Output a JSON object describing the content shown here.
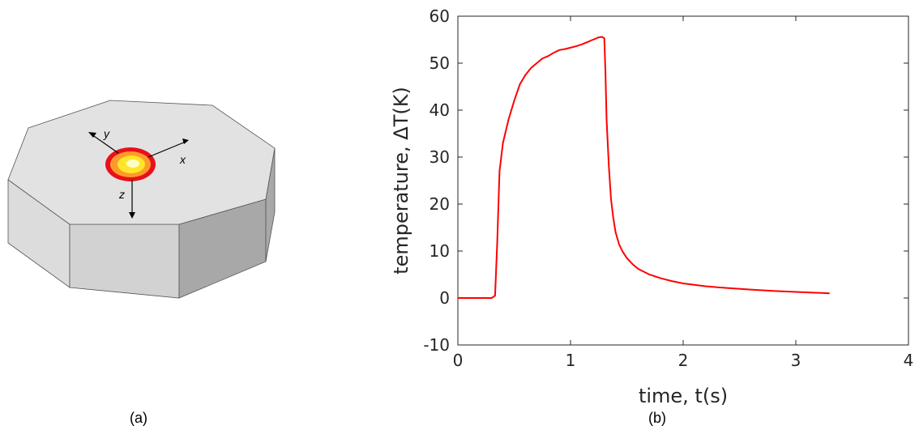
{
  "panels": {
    "a": {
      "label": "(a)"
    },
    "b": {
      "label": "(b)"
    }
  },
  "diagram": {
    "axis_labels": {
      "x": "x",
      "y": "y",
      "z": "z"
    },
    "colors": {
      "top_face": "#e2e2e2",
      "side_light": "#dcdcdc",
      "side_mid": "#d2d2d2",
      "side_dark": "#a8a8a8",
      "spot_outer": "#e8101a",
      "spot_mid": "#ff9a2a",
      "spot_inner": "#ffe62a",
      "spot_core": "#ffffc8"
    }
  },
  "chart_data": {
    "type": "line",
    "xlabel": "time, t(s)",
    "ylabel": "temperature, ΔT(K)",
    "xlim": [
      0,
      4
    ],
    "ylim": [
      -10,
      60
    ],
    "xticks": [
      "0",
      "1",
      "2",
      "3",
      "4"
    ],
    "yticks": [
      "-10",
      "0",
      "10",
      "20",
      "30",
      "40",
      "50",
      "60"
    ],
    "grid": false,
    "color": "#ff0000",
    "series": [
      {
        "x": [
          0,
          0.1,
          0.2,
          0.3,
          0.33,
          0.35,
          0.37,
          0.4,
          0.45,
          0.5,
          0.55,
          0.6,
          0.65,
          0.7,
          0.75,
          0.8,
          0.85,
          0.9,
          0.95,
          1.0,
          1.05,
          1.1,
          1.15,
          1.2,
          1.25,
          1.28,
          1.3,
          1.31,
          1.32,
          1.34,
          1.36,
          1.38,
          1.4,
          1.43,
          1.46,
          1.5,
          1.55,
          1.6,
          1.7,
          1.8,
          1.9,
          2.0,
          2.2,
          2.4,
          2.6,
          2.8,
          3.0,
          3.2,
          3.3
        ],
        "y": [
          0,
          0,
          0,
          0,
          0.5,
          12,
          27,
          33,
          38,
          42,
          45.5,
          47.5,
          49,
          50,
          51,
          51.5,
          52.2,
          52.8,
          53,
          53.3,
          53.6,
          54,
          54.5,
          55,
          55.5,
          55.6,
          55.3,
          48,
          38,
          28,
          21,
          17,
          14,
          11.5,
          10,
          8.5,
          7.2,
          6.2,
          5,
          4.2,
          3.6,
          3.1,
          2.5,
          2.1,
          1.8,
          1.5,
          1.3,
          1.1,
          1.0
        ]
      }
    ]
  }
}
